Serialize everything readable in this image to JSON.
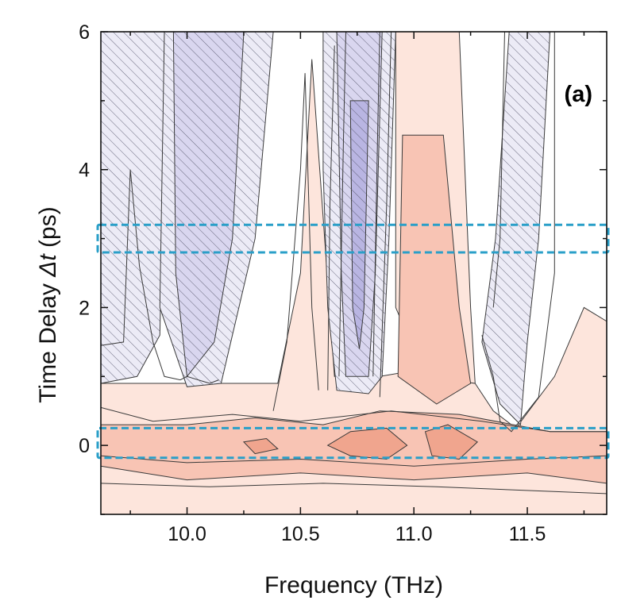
{
  "chart_data": {
    "type": "contour",
    "panel_label": "(a)",
    "xlabel": "Frequency (THz)",
    "ylabel_prefix": "Time Delay ",
    "ylabel_symbol": "Δt",
    "ylabel_suffix": " (ps)",
    "xlim": [
      9.62,
      11.85
    ],
    "ylim": [
      -1.0,
      6.0
    ],
    "x_ticks": [
      10.0,
      10.5,
      11.0,
      11.5
    ],
    "x_tick_labels": [
      "10.0",
      "10.5",
      "11.0",
      "11.5"
    ],
    "x_minor_ticks": [
      9.75,
      10.25,
      10.75,
      11.25,
      11.75
    ],
    "y_ticks": [
      0,
      2,
      4,
      6
    ],
    "y_tick_labels": [
      "0",
      "2",
      "4",
      "6"
    ],
    "y_minor_ticks": [
      -1,
      1,
      3,
      5
    ],
    "colors": {
      "negative_light": "#ecebf6",
      "negative_mid": "#d9d6ef",
      "negative_deep": "#b9b5e2",
      "positive_light": "#fde5dc",
      "positive_mid": "#f8c4b4",
      "positive_deep": "#f0a58e",
      "contour_line": "#3a3a3a",
      "hatch": "#5a5a70",
      "highlight_box": "#2a9fc8"
    },
    "highlight_bands": [
      {
        "y_min": 2.8,
        "y_max": 3.2
      },
      {
        "y_min": -0.18,
        "y_max": 0.25
      }
    ],
    "negative_regions": [
      {
        "level": "light",
        "polygon": [
          [
            9.62,
            0.9
          ],
          [
            9.62,
            6.0
          ],
          [
            9.9,
            6.0
          ],
          [
            9.9,
            4.5
          ],
          [
            9.88,
            1.6
          ],
          [
            9.78,
            1.0
          ]
        ]
      },
      {
        "level": "light",
        "polygon": [
          [
            9.9,
            6.0
          ],
          [
            10.38,
            6.0
          ],
          [
            10.3,
            3.0
          ],
          [
            10.15,
            0.9
          ],
          [
            10.0,
            0.85
          ],
          [
            9.88,
            2.0
          ]
        ]
      },
      {
        "level": "mid",
        "polygon": [
          [
            9.94,
            6.0
          ],
          [
            10.25,
            6.0
          ],
          [
            10.2,
            3.0
          ],
          [
            10.12,
            1.5
          ],
          [
            10.0,
            1.0
          ],
          [
            9.95,
            2.5
          ]
        ]
      },
      {
        "level": "light",
        "polygon": [
          [
            10.6,
            6.0
          ],
          [
            10.92,
            6.0
          ],
          [
            10.89,
            3.0
          ],
          [
            10.86,
            1.0
          ],
          [
            10.8,
            0.75
          ],
          [
            10.66,
            0.8
          ],
          [
            10.62,
            2.0
          ],
          [
            10.6,
            4.0
          ]
        ]
      },
      {
        "level": "mid",
        "polygon": [
          [
            10.66,
            6.0
          ],
          [
            10.86,
            6.0
          ],
          [
            10.83,
            2.5
          ],
          [
            10.8,
            1.0
          ],
          [
            10.7,
            1.0
          ],
          [
            10.68,
            2.5
          ]
        ]
      },
      {
        "level": "deep",
        "polygon": [
          [
            10.72,
            5.0
          ],
          [
            10.8,
            5.0
          ],
          [
            10.78,
            2.0
          ],
          [
            10.76,
            1.4
          ],
          [
            10.73,
            2.0
          ]
        ]
      },
      {
        "level": "light",
        "polygon": [
          [
            11.42,
            6.0
          ],
          [
            11.6,
            6.0
          ],
          [
            11.55,
            3.0
          ],
          [
            11.5,
            1.5
          ],
          [
            11.47,
            0.3
          ],
          [
            11.38,
            0.6
          ],
          [
            11.3,
            1.5
          ],
          [
            11.36,
            3.0
          ]
        ]
      }
    ],
    "positive_regions": [
      {
        "level": "light",
        "polygon": [
          [
            9.62,
            0.9
          ],
          [
            10.4,
            0.9
          ],
          [
            10.5,
            2.5
          ],
          [
            10.55,
            5.6
          ],
          [
            10.65,
            1.0
          ],
          [
            10.85,
            1.0
          ],
          [
            11.2,
            1.2
          ],
          [
            11.27,
            0.9
          ],
          [
            11.35,
            0.5
          ],
          [
            11.45,
            0.25
          ],
          [
            11.62,
            1.0
          ],
          [
            11.75,
            2.0
          ],
          [
            11.85,
            1.8
          ],
          [
            11.85,
            -1.0
          ],
          [
            9.62,
            -1.0
          ]
        ]
      },
      {
        "level": "light",
        "polygon": [
          [
            10.92,
            6.0
          ],
          [
            11.2,
            6.0
          ],
          [
            11.25,
            2.0
          ],
          [
            11.27,
            0.9
          ],
          [
            11.05,
            1.0
          ],
          [
            10.92,
            2.0
          ]
        ]
      },
      {
        "level": "mid",
        "polygon": [
          [
            10.95,
            4.5
          ],
          [
            11.13,
            4.5
          ],
          [
            11.2,
            2.0
          ],
          [
            11.25,
            0.9
          ],
          [
            11.1,
            0.6
          ],
          [
            10.93,
            1.0
          ]
        ]
      },
      {
        "level": "mid",
        "polygon": [
          [
            9.62,
            0.3
          ],
          [
            10.0,
            0.3
          ],
          [
            10.3,
            0.4
          ],
          [
            10.6,
            0.3
          ],
          [
            10.85,
            0.5
          ],
          [
            11.2,
            0.45
          ],
          [
            11.6,
            0.2
          ],
          [
            11.85,
            0.2
          ],
          [
            11.85,
            -0.55
          ],
          [
            11.5,
            -0.4
          ],
          [
            11.0,
            -0.5
          ],
          [
            10.5,
            -0.4
          ],
          [
            10.0,
            -0.5
          ],
          [
            9.62,
            -0.3
          ]
        ]
      },
      {
        "level": "deep",
        "polygon": [
          [
            10.72,
            0.2
          ],
          [
            10.88,
            0.25
          ],
          [
            10.97,
            0.0
          ],
          [
            10.88,
            -0.2
          ],
          [
            10.72,
            -0.15
          ],
          [
            10.62,
            0.0
          ]
        ]
      },
      {
        "level": "deep",
        "polygon": [
          [
            11.05,
            0.2
          ],
          [
            11.15,
            0.3
          ],
          [
            11.28,
            0.05
          ],
          [
            11.2,
            -0.2
          ],
          [
            11.08,
            -0.15
          ]
        ]
      },
      {
        "level": "deep",
        "polygon": [
          [
            10.25,
            0.05
          ],
          [
            10.35,
            0.1
          ],
          [
            10.4,
            -0.05
          ],
          [
            10.3,
            -0.12
          ]
        ]
      }
    ],
    "contour_lines": [
      [
        [
          9.62,
          1.45
        ],
        [
          9.72,
          1.5
        ],
        [
          9.75,
          4.0
        ],
        [
          9.79,
          2.6
        ],
        [
          9.85,
          1.5
        ],
        [
          9.9,
          1.0
        ],
        [
          9.97,
          0.95
        ],
        [
          10.0,
          1.0
        ],
        [
          10.1,
          0.9
        ],
        [
          10.14,
          0.95
        ]
      ],
      [
        [
          10.62,
          0.8
        ],
        [
          10.63,
          3.5
        ],
        [
          10.65,
          5.8
        ]
      ],
      [
        [
          10.85,
          0.7
        ],
        [
          10.88,
          3.5
        ],
        [
          10.9,
          6.0
        ]
      ],
      [
        [
          10.67,
          1.0
        ],
        [
          10.69,
          4.5
        ],
        [
          10.7,
          6.0
        ]
      ],
      [
        [
          10.82,
          1.0
        ],
        [
          10.84,
          4.5
        ],
        [
          10.85,
          6.0
        ]
      ],
      [
        [
          11.3,
          1.6
        ],
        [
          11.35,
          1.0
        ],
        [
          11.38,
          0.35
        ],
        [
          11.43,
          0.2
        ],
        [
          11.55,
          0.7
        ],
        [
          11.62,
          2.5
        ],
        [
          11.62,
          6.0
        ]
      ],
      [
        [
          11.4,
          6.0
        ],
        [
          11.38,
          3.0
        ],
        [
          11.35,
          2.0
        ]
      ],
      [
        [
          9.62,
          0.55
        ],
        [
          9.85,
          0.35
        ],
        [
          10.2,
          0.45
        ],
        [
          10.5,
          0.35
        ],
        [
          10.9,
          0.5
        ],
        [
          11.3,
          0.35
        ],
        [
          11.6,
          0.2
        ],
        [
          11.85,
          0.2
        ]
      ],
      [
        [
          9.62,
          -0.15
        ],
        [
          10.0,
          -0.25
        ],
        [
          10.5,
          -0.2
        ],
        [
          11.0,
          -0.3
        ],
        [
          11.5,
          -0.2
        ],
        [
          11.85,
          -0.15
        ]
      ],
      [
        [
          9.62,
          -0.55
        ],
        [
          10.1,
          -0.6
        ],
        [
          10.6,
          -0.55
        ],
        [
          11.1,
          -0.6
        ],
        [
          11.85,
          -0.7
        ]
      ],
      [
        [
          10.38,
          0.5
        ],
        [
          10.44,
          1.5
        ],
        [
          10.5,
          4.0
        ],
        [
          10.52,
          5.4
        ],
        [
          10.55,
          2.0
        ],
        [
          10.58,
          0.8
        ]
      ]
    ]
  }
}
